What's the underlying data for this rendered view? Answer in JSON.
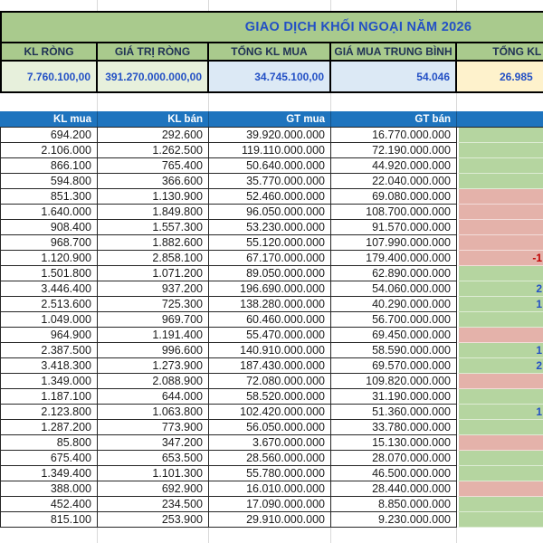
{
  "app": {
    "type": "spreadsheet"
  },
  "title": "GIAO DỊCH KHỐI NGOẠI NĂM 2026",
  "summary": {
    "columns": [
      {
        "label": "KL RÒNG",
        "value": "7.760.100,00",
        "value_bg": "green"
      },
      {
        "label": "GIÁ TRỊ RÒNG",
        "value": "391.270.000.000,00",
        "value_bg": "green"
      },
      {
        "label": "TỔNG KL MUA",
        "value": "34.745.100,00",
        "value_bg": "blue"
      },
      {
        "label": "GIÁ MUA TRUNG BÌNH",
        "value": "54.046",
        "value_bg": "blue"
      },
      {
        "label": "TỔNG KL BÁ",
        "value": "26.985",
        "value_bg": "yellow"
      }
    ]
  },
  "table": {
    "headers": [
      "KL mua",
      "KL bán",
      "GT mua",
      "GT bán"
    ],
    "rows": [
      {
        "kl_mua": "694.200",
        "kl_ban": "292.600",
        "gt_mua": "39.920.000.000",
        "gt_ban": "16.770.000.000",
        "net_bg": "green",
        "net_text": ""
      },
      {
        "kl_mua": "2.106.000",
        "kl_ban": "1.262.500",
        "gt_mua": "119.110.000.000",
        "gt_ban": "72.190.000.000",
        "net_bg": "green",
        "net_text": ""
      },
      {
        "kl_mua": "866.100",
        "kl_ban": "765.400",
        "gt_mua": "50.640.000.000",
        "gt_ban": "44.920.000.000",
        "net_bg": "green",
        "net_text": ""
      },
      {
        "kl_mua": "594.800",
        "kl_ban": "366.600",
        "gt_mua": "35.770.000.000",
        "gt_ban": "22.040.000.000",
        "net_bg": "green",
        "net_text": ""
      },
      {
        "kl_mua": "851.300",
        "kl_ban": "1.130.900",
        "gt_mua": "52.460.000.000",
        "gt_ban": "69.080.000.000",
        "net_bg": "red",
        "net_text": ""
      },
      {
        "kl_mua": "1.640.000",
        "kl_ban": "1.849.800",
        "gt_mua": "96.050.000.000",
        "gt_ban": "108.700.000.000",
        "net_bg": "red",
        "net_text": ""
      },
      {
        "kl_mua": "908.400",
        "kl_ban": "1.557.300",
        "gt_mua": "53.230.000.000",
        "gt_ban": "91.570.000.000",
        "net_bg": "red",
        "net_text": ""
      },
      {
        "kl_mua": "968.700",
        "kl_ban": "1.882.600",
        "gt_mua": "55.120.000.000",
        "gt_ban": "107.990.000.000",
        "net_bg": "red",
        "net_text": ""
      },
      {
        "kl_mua": "1.120.900",
        "kl_ban": "2.858.100",
        "gt_mua": "67.170.000.000",
        "gt_ban": "179.400.000.000",
        "net_bg": "red",
        "net_text": "-1"
      },
      {
        "kl_mua": "1.501.800",
        "kl_ban": "1.071.200",
        "gt_mua": "89.050.000.000",
        "gt_ban": "62.890.000.000",
        "net_bg": "green",
        "net_text": ""
      },
      {
        "kl_mua": "3.446.400",
        "kl_ban": "937.200",
        "gt_mua": "196.690.000.000",
        "gt_ban": "54.060.000.000",
        "net_bg": "green",
        "net_text": "2"
      },
      {
        "kl_mua": "2.513.600",
        "kl_ban": "725.300",
        "gt_mua": "138.280.000.000",
        "gt_ban": "40.290.000.000",
        "net_bg": "green",
        "net_text": "1"
      },
      {
        "kl_mua": "1.049.000",
        "kl_ban": "969.700",
        "gt_mua": "60.460.000.000",
        "gt_ban": "56.700.000.000",
        "net_bg": "green",
        "net_text": ""
      },
      {
        "kl_mua": "964.900",
        "kl_ban": "1.191.400",
        "gt_mua": "55.470.000.000",
        "gt_ban": "69.450.000.000",
        "net_bg": "red",
        "net_text": ""
      },
      {
        "kl_mua": "2.387.500",
        "kl_ban": "996.600",
        "gt_mua": "140.910.000.000",
        "gt_ban": "58.590.000.000",
        "net_bg": "green",
        "net_text": "1"
      },
      {
        "kl_mua": "3.418.300",
        "kl_ban": "1.273.900",
        "gt_mua": "187.430.000.000",
        "gt_ban": "69.570.000.000",
        "net_bg": "green",
        "net_text": "2"
      },
      {
        "kl_mua": "1.349.000",
        "kl_ban": "2.088.900",
        "gt_mua": "72.080.000.000",
        "gt_ban": "109.820.000.000",
        "net_bg": "red",
        "net_text": ""
      },
      {
        "kl_mua": "1.187.100",
        "kl_ban": "644.000",
        "gt_mua": "58.520.000.000",
        "gt_ban": "31.190.000.000",
        "net_bg": "green",
        "net_text": ""
      },
      {
        "kl_mua": "2.123.800",
        "kl_ban": "1.063.800",
        "gt_mua": "102.420.000.000",
        "gt_ban": "51.360.000.000",
        "net_bg": "green",
        "net_text": "1"
      },
      {
        "kl_mua": "1.287.200",
        "kl_ban": "773.900",
        "gt_mua": "56.050.000.000",
        "gt_ban": "33.780.000.000",
        "net_bg": "green",
        "net_text": ""
      },
      {
        "kl_mua": "85.800",
        "kl_ban": "347.200",
        "gt_mua": "3.670.000.000",
        "gt_ban": "15.130.000.000",
        "net_bg": "red",
        "net_text": ""
      },
      {
        "kl_mua": "675.400",
        "kl_ban": "653.500",
        "gt_mua": "28.560.000.000",
        "gt_ban": "28.070.000.000",
        "net_bg": "green",
        "net_text": ""
      },
      {
        "kl_mua": "1.349.400",
        "kl_ban": "1.101.300",
        "gt_mua": "55.780.000.000",
        "gt_ban": "46.500.000.000",
        "net_bg": "green",
        "net_text": ""
      },
      {
        "kl_mua": "388.000",
        "kl_ban": "692.900",
        "gt_mua": "16.010.000.000",
        "gt_ban": "28.440.000.000",
        "net_bg": "red",
        "net_text": ""
      },
      {
        "kl_mua": "452.400",
        "kl_ban": "234.500",
        "gt_mua": "17.090.000.000",
        "gt_ban": "8.850.000.000",
        "net_bg": "green",
        "net_text": ""
      },
      {
        "kl_mua": "815.100",
        "kl_ban": "253.900",
        "gt_mua": "29.910.000.000",
        "gt_ban": "9.230.000.000",
        "net_bg": "green",
        "net_text": ""
      }
    ]
  },
  "colors": {
    "title_band_green": "#a9ca8d",
    "summary_value_green": "#e7f0dc",
    "summary_value_blue": "#dce9f5",
    "summary_value_yellow": "#fef2cc",
    "table_header_blue": "#1e74be",
    "net_positive_green": "#b5d5a0",
    "net_negative_red": "#e4b2aa",
    "blue_text": "#2350c5",
    "red_text": "#c00000",
    "header_text_navy": "#1f3154"
  }
}
